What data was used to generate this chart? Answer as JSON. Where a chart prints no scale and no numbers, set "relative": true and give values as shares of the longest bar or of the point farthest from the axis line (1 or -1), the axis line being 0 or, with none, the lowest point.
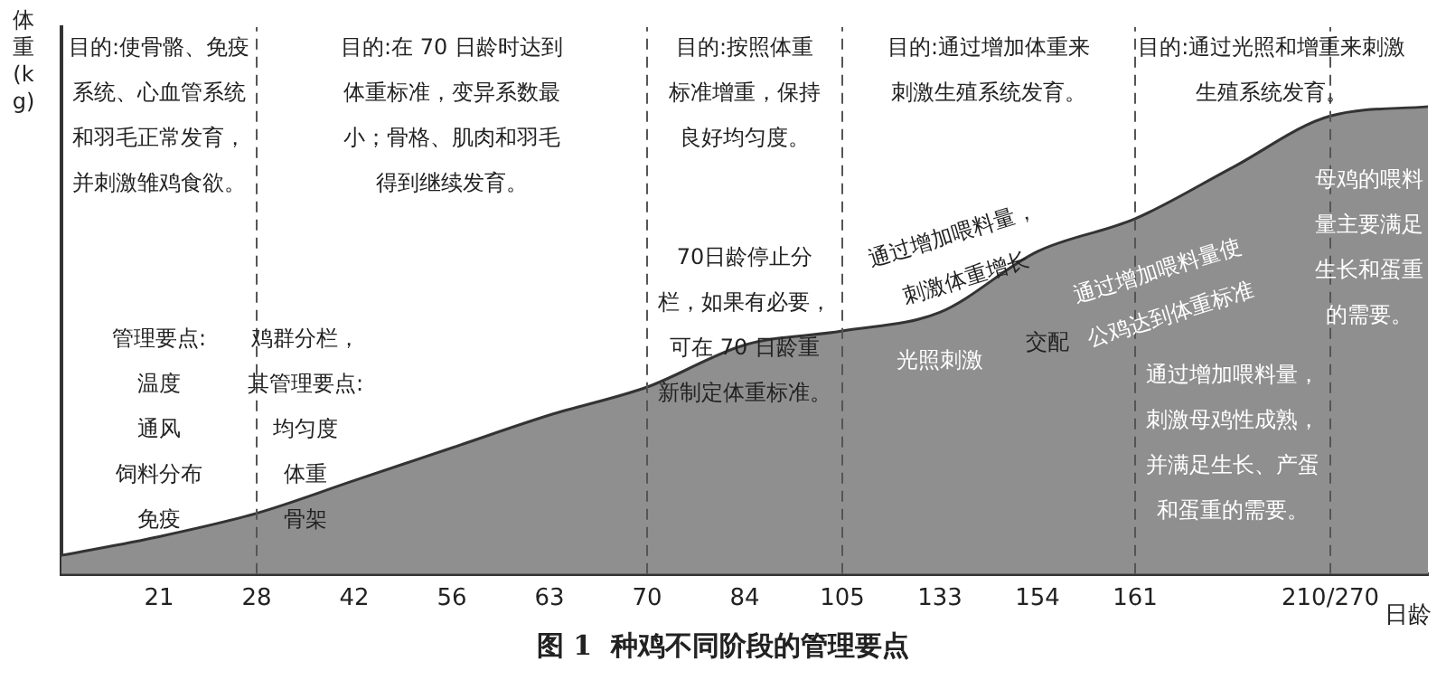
{
  "chart_data": {
    "type": "area",
    "title": "图 1  种鸡不同阶段的管理要点",
    "xlabel": "日龄",
    "ylabel": "体重(kg)",
    "relative": true,
    "categories": [
      null,
      "21",
      "28",
      "42",
      "56",
      "63",
      "70",
      "84",
      "105",
      "133",
      "154",
      "161",
      null,
      "210/270",
      null
    ],
    "series": [
      {
        "color": "#8f8f8f",
        "values": [
          0.04,
          0.08,
          0.13,
          0.2,
          0.27,
          0.34,
          0.4,
          0.49,
          0.52,
          0.56,
          0.69,
          0.76,
          0.87,
          0.98,
          1
        ]
      }
    ],
    "ref_lines": [
      {
        "axis": "x",
        "value": "28",
        "line_style": "dashed",
        "color": "#555555"
      },
      {
        "axis": "x",
        "value": "70",
        "line_style": "dashed",
        "color": "#555555"
      },
      {
        "axis": "x",
        "value": "105",
        "line_style": "dashed",
        "color": "#555555"
      },
      {
        "axis": "x",
        "value": "161",
        "line_style": "dashed",
        "color": "#555555"
      },
      {
        "axis": "x",
        "value": "210/270",
        "line_style": "dashed",
        "color": "#555555"
      }
    ],
    "annotations": [
      "目的:使骨骼、免疫系统、心血管系统和羽毛正常发育，并刺激雏鸡食欲。",
      "目的:在 70 日龄时达到体重标准，变异系数最小；骨格、肌肉和羽毛得到继续发育。",
      "目的:按照体重标准增重，保持良好均匀度。",
      "目的:通过增加体重来刺激生殖系统发育。",
      "目的:通过光照和增重来刺激生殖系统发育。",
      "管理要点:温度通风饲料分布免疫",
      "鸡群分栏，其管理要点:均匀度体重骨架",
      "70日龄停止分栏，如果有必要，可在 70 日龄重新制定体重标准。",
      "通过增加喂料量，刺激体重增长",
      "交配",
      "光照刺激",
      "通过增加喂料量使公鸡达到体重标准",
      "母鸡的喂料量主要满足生长和蛋重的需要。",
      "通过增加喂料量，刺激母鸡性成熟，并满足生长、产蛋和蛋重的需要。"
    ],
    "legend": false,
    "grid": false,
    "marker": "none",
    "line_style": "solid"
  }
}
